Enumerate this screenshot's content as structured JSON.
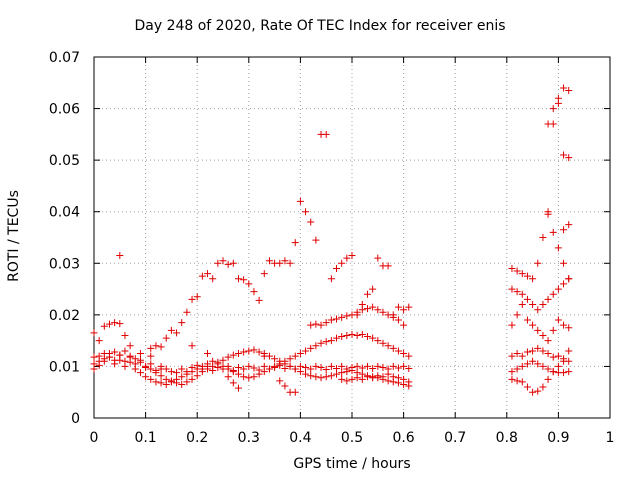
{
  "chart_data": {
    "type": "scatter",
    "title": "Day 248 of 2020, Rate Of TEC Index for receiver enis",
    "xlabel": "GPS time / hours",
    "ylabel": "ROTI / TECUs",
    "xlim": [
      0,
      1
    ],
    "ylim": [
      0,
      0.07
    ],
    "xticks": [
      "0",
      "0.1",
      "0.2",
      "0.3",
      "0.4",
      "0.5",
      "0.6",
      "0.7",
      "0.8",
      "0.9",
      "1"
    ],
    "yticks": [
      "0",
      "0.01",
      "0.02",
      "0.03",
      "0.04",
      "0.05",
      "0.06",
      "0.07"
    ],
    "grid": true,
    "marker": "+",
    "color": "#e00000",
    "points": [
      [
        0.0,
        0.0118
      ],
      [
        0.01,
        0.012
      ],
      [
        0.02,
        0.0115
      ],
      [
        0.03,
        0.0125
      ],
      [
        0.04,
        0.0112
      ],
      [
        0.05,
        0.0122
      ],
      [
        0.06,
        0.011
      ],
      [
        0.07,
        0.0118
      ],
      [
        0.08,
        0.0105
      ],
      [
        0.09,
        0.0112
      ],
      [
        0.1,
        0.0098
      ],
      [
        0.11,
        0.0105
      ],
      [
        0.12,
        0.0092
      ],
      [
        0.13,
        0.01
      ],
      [
        0.14,
        0.0095
      ],
      [
        0.15,
        0.009
      ],
      [
        0.16,
        0.0088
      ],
      [
        0.17,
        0.0095
      ],
      [
        0.18,
        0.009
      ],
      [
        0.19,
        0.0098
      ],
      [
        0.2,
        0.0102
      ],
      [
        0.21,
        0.0095
      ],
      [
        0.22,
        0.01
      ],
      [
        0.23,
        0.0092
      ],
      [
        0.24,
        0.0098
      ],
      [
        0.25,
        0.0095
      ],
      [
        0.26,
        0.01
      ],
      [
        0.27,
        0.0092
      ],
      [
        0.28,
        0.0098
      ],
      [
        0.29,
        0.0095
      ],
      [
        0.3,
        0.01
      ],
      [
        0.31,
        0.0097
      ],
      [
        0.32,
        0.0093
      ],
      [
        0.33,
        0.01
      ],
      [
        0.34,
        0.0095
      ],
      [
        0.35,
        0.0098
      ],
      [
        0.36,
        0.0102
      ],
      [
        0.37,
        0.0096
      ],
      [
        0.38,
        0.01
      ],
      [
        0.39,
        0.0095
      ],
      [
        0.4,
        0.01
      ],
      [
        0.41,
        0.0098
      ],
      [
        0.42,
        0.0095
      ],
      [
        0.43,
        0.01
      ],
      [
        0.44,
        0.0098
      ],
      [
        0.45,
        0.0094
      ],
      [
        0.46,
        0.01
      ],
      [
        0.47,
        0.0096
      ],
      [
        0.48,
        0.01
      ],
      [
        0.49,
        0.0095
      ],
      [
        0.5,
        0.0098
      ],
      [
        0.51,
        0.01
      ],
      [
        0.52,
        0.0097
      ],
      [
        0.53,
        0.01
      ],
      [
        0.54,
        0.0096
      ],
      [
        0.55,
        0.01
      ],
      [
        0.56,
        0.0098
      ],
      [
        0.57,
        0.0095
      ],
      [
        0.58,
        0.01
      ],
      [
        0.59,
        0.0097
      ],
      [
        0.6,
        0.01
      ],
      [
        0.61,
        0.0096
      ],
      [
        0.0,
        0.0105
      ],
      [
        0.01,
        0.011
      ],
      [
        0.02,
        0.0125
      ],
      [
        0.03,
        0.0118
      ],
      [
        0.04,
        0.0128
      ],
      [
        0.05,
        0.0122
      ],
      [
        0.06,
        0.013
      ],
      [
        0.07,
        0.012
      ],
      [
        0.08,
        0.0115
      ],
      [
        0.09,
        0.0108
      ],
      [
        0.1,
        0.01
      ],
      [
        0.11,
        0.0095
      ],
      [
        0.12,
        0.0088
      ],
      [
        0.13,
        0.0082
      ],
      [
        0.14,
        0.0075
      ],
      [
        0.15,
        0.0072
      ],
      [
        0.16,
        0.0068
      ],
      [
        0.17,
        0.0065
      ],
      [
        0.18,
        0.007
      ],
      [
        0.19,
        0.0075
      ],
      [
        0.2,
        0.0082
      ],
      [
        0.21,
        0.009
      ],
      [
        0.22,
        0.0095
      ],
      [
        0.23,
        0.01
      ],
      [
        0.24,
        0.0108
      ],
      [
        0.25,
        0.0112
      ],
      [
        0.26,
        0.0118
      ],
      [
        0.27,
        0.0122
      ],
      [
        0.28,
        0.0125
      ],
      [
        0.29,
        0.0128
      ],
      [
        0.3,
        0.013
      ],
      [
        0.31,
        0.0132
      ],
      [
        0.32,
        0.0128
      ],
      [
        0.33,
        0.0125
      ],
      [
        0.34,
        0.012
      ],
      [
        0.35,
        0.0115
      ],
      [
        0.36,
        0.011
      ],
      [
        0.37,
        0.0105
      ],
      [
        0.38,
        0.01
      ],
      [
        0.39,
        0.0095
      ],
      [
        0.4,
        0.009
      ],
      [
        0.41,
        0.0085
      ],
      [
        0.42,
        0.0082
      ],
      [
        0.43,
        0.008
      ],
      [
        0.44,
        0.0078
      ],
      [
        0.45,
        0.008
      ],
      [
        0.46,
        0.0082
      ],
      [
        0.47,
        0.0085
      ],
      [
        0.48,
        0.0088
      ],
      [
        0.49,
        0.009
      ],
      [
        0.5,
        0.0092
      ],
      [
        0.51,
        0.0088
      ],
      [
        0.52,
        0.0085
      ],
      [
        0.53,
        0.0082
      ],
      [
        0.54,
        0.008
      ],
      [
        0.55,
        0.0078
      ],
      [
        0.56,
        0.0075
      ],
      [
        0.57,
        0.0072
      ],
      [
        0.58,
        0.007
      ],
      [
        0.59,
        0.0068
      ],
      [
        0.6,
        0.0065
      ],
      [
        0.61,
        0.0062
      ],
      [
        0.0,
        0.0095
      ],
      [
        0.01,
        0.0102
      ],
      [
        0.02,
        0.011
      ],
      [
        0.03,
        0.0118
      ],
      [
        0.04,
        0.0105
      ],
      [
        0.05,
        0.0112
      ],
      [
        0.06,
        0.01
      ],
      [
        0.07,
        0.0108
      ],
      [
        0.08,
        0.0095
      ],
      [
        0.09,
        0.0088
      ],
      [
        0.1,
        0.008
      ],
      [
        0.11,
        0.0075
      ],
      [
        0.12,
        0.007
      ],
      [
        0.13,
        0.0068
      ],
      [
        0.14,
        0.0065
      ],
      [
        0.15,
        0.007
      ],
      [
        0.16,
        0.0075
      ],
      [
        0.17,
        0.008
      ],
      [
        0.18,
        0.0085
      ],
      [
        0.19,
        0.009
      ],
      [
        0.2,
        0.0095
      ],
      [
        0.21,
        0.01
      ],
      [
        0.22,
        0.0105
      ],
      [
        0.23,
        0.011
      ],
      [
        0.24,
        0.0105
      ],
      [
        0.25,
        0.01
      ],
      [
        0.26,
        0.0095
      ],
      [
        0.27,
        0.009
      ],
      [
        0.28,
        0.0085
      ],
      [
        0.29,
        0.008
      ],
      [
        0.3,
        0.0078
      ],
      [
        0.31,
        0.008
      ],
      [
        0.32,
        0.0085
      ],
      [
        0.33,
        0.009
      ],
      [
        0.34,
        0.0095
      ],
      [
        0.35,
        0.01
      ],
      [
        0.36,
        0.0105
      ],
      [
        0.37,
        0.011
      ],
      [
        0.38,
        0.0115
      ],
      [
        0.39,
        0.012
      ],
      [
        0.4,
        0.0125
      ],
      [
        0.41,
        0.013
      ],
      [
        0.42,
        0.0135
      ],
      [
        0.43,
        0.014
      ],
      [
        0.44,
        0.0145
      ],
      [
        0.45,
        0.0148
      ],
      [
        0.46,
        0.015
      ],
      [
        0.47,
        0.0155
      ],
      [
        0.48,
        0.0158
      ],
      [
        0.49,
        0.016
      ],
      [
        0.5,
        0.0162
      ],
      [
        0.51,
        0.016
      ],
      [
        0.52,
        0.0162
      ],
      [
        0.53,
        0.0158
      ],
      [
        0.54,
        0.0155
      ],
      [
        0.55,
        0.015
      ],
      [
        0.56,
        0.0145
      ],
      [
        0.57,
        0.014
      ],
      [
        0.58,
        0.0135
      ],
      [
        0.59,
        0.013
      ],
      [
        0.6,
        0.0125
      ],
      [
        0.61,
        0.012
      ],
      [
        0.0,
        0.0165
      ],
      [
        0.01,
        0.015
      ],
      [
        0.02,
        0.0178
      ],
      [
        0.03,
        0.0182
      ],
      [
        0.04,
        0.0185
      ],
      [
        0.05,
        0.0183
      ],
      [
        0.06,
        0.016
      ],
      [
        0.07,
        0.014
      ],
      [
        0.09,
        0.0125
      ],
      [
        0.11,
        0.0135
      ],
      [
        0.12,
        0.014
      ],
      [
        0.13,
        0.0138
      ],
      [
        0.14,
        0.0155
      ],
      [
        0.15,
        0.017
      ],
      [
        0.16,
        0.0165
      ],
      [
        0.17,
        0.0185
      ],
      [
        0.18,
        0.0205
      ],
      [
        0.19,
        0.023
      ],
      [
        0.2,
        0.0235
      ],
      [
        0.21,
        0.0275
      ],
      [
        0.22,
        0.028
      ],
      [
        0.23,
        0.027
      ],
      [
        0.24,
        0.03
      ],
      [
        0.25,
        0.0305
      ],
      [
        0.26,
        0.0298
      ],
      [
        0.27,
        0.03
      ],
      [
        0.28,
        0.027
      ],
      [
        0.29,
        0.0268
      ],
      [
        0.3,
        0.026
      ],
      [
        0.31,
        0.0245
      ],
      [
        0.32,
        0.0228
      ],
      [
        0.33,
        0.028
      ],
      [
        0.34,
        0.0305
      ],
      [
        0.35,
        0.03
      ],
      [
        0.36,
        0.03
      ],
      [
        0.37,
        0.0305
      ],
      [
        0.38,
        0.03
      ],
      [
        0.39,
        0.034
      ],
      [
        0.4,
        0.042
      ],
      [
        0.41,
        0.04
      ],
      [
        0.42,
        0.038
      ],
      [
        0.43,
        0.0345
      ],
      [
        0.44,
        0.055
      ],
      [
        0.45,
        0.055
      ],
      [
        0.46,
        0.027
      ],
      [
        0.47,
        0.029
      ],
      [
        0.48,
        0.03
      ],
      [
        0.49,
        0.031
      ],
      [
        0.5,
        0.0315
      ],
      [
        0.51,
        0.02
      ],
      [
        0.52,
        0.022
      ],
      [
        0.53,
        0.024
      ],
      [
        0.54,
        0.025
      ],
      [
        0.55,
        0.031
      ],
      [
        0.56,
        0.0295
      ],
      [
        0.57,
        0.0295
      ],
      [
        0.58,
        0.02
      ],
      [
        0.59,
        0.0215
      ],
      [
        0.6,
        0.021
      ],
      [
        0.61,
        0.0215
      ],
      [
        0.05,
        0.0315
      ],
      [
        0.11,
        0.012
      ],
      [
        0.13,
        0.0095
      ],
      [
        0.19,
        0.014
      ],
      [
        0.22,
        0.0125
      ],
      [
        0.26,
        0.008
      ],
      [
        0.27,
        0.0068
      ],
      [
        0.28,
        0.0058
      ],
      [
        0.33,
        0.012
      ],
      [
        0.36,
        0.0072
      ],
      [
        0.37,
        0.0062
      ],
      [
        0.38,
        0.005
      ],
      [
        0.39,
        0.005
      ],
      [
        0.42,
        0.018
      ],
      [
        0.43,
        0.0182
      ],
      [
        0.44,
        0.018
      ],
      [
        0.45,
        0.0185
      ],
      [
        0.46,
        0.019
      ],
      [
        0.47,
        0.0192
      ],
      [
        0.48,
        0.0195
      ],
      [
        0.49,
        0.0198
      ],
      [
        0.5,
        0.02
      ],
      [
        0.51,
        0.0205
      ],
      [
        0.52,
        0.021
      ],
      [
        0.53,
        0.0212
      ],
      [
        0.54,
        0.0215
      ],
      [
        0.55,
        0.021
      ],
      [
        0.56,
        0.0205
      ],
      [
        0.57,
        0.02
      ],
      [
        0.58,
        0.0195
      ],
      [
        0.59,
        0.019
      ],
      [
        0.6,
        0.018
      ],
      [
        0.48,
        0.0075
      ],
      [
        0.49,
        0.0072
      ],
      [
        0.5,
        0.0075
      ],
      [
        0.51,
        0.0078
      ],
      [
        0.52,
        0.0075
      ],
      [
        0.53,
        0.008
      ],
      [
        0.54,
        0.0078
      ],
      [
        0.55,
        0.0082
      ],
      [
        0.56,
        0.008
      ],
      [
        0.57,
        0.0085
      ],
      [
        0.58,
        0.008
      ],
      [
        0.59,
        0.0078
      ],
      [
        0.6,
        0.0075
      ],
      [
        0.61,
        0.007
      ],
      [
        0.81,
        0.029
      ],
      [
        0.82,
        0.0285
      ],
      [
        0.83,
        0.028
      ],
      [
        0.84,
        0.0275
      ],
      [
        0.85,
        0.027
      ],
      [
        0.86,
        0.03
      ],
      [
        0.87,
        0.035
      ],
      [
        0.88,
        0.04
      ],
      [
        0.89,
        0.036
      ],
      [
        0.9,
        0.033
      ],
      [
        0.91,
        0.03
      ],
      [
        0.92,
        0.027
      ],
      [
        0.81,
        0.025
      ],
      [
        0.82,
        0.0245
      ],
      [
        0.83,
        0.024
      ],
      [
        0.84,
        0.023
      ],
      [
        0.85,
        0.022
      ],
      [
        0.86,
        0.021
      ],
      [
        0.87,
        0.022
      ],
      [
        0.88,
        0.023
      ],
      [
        0.89,
        0.024
      ],
      [
        0.9,
        0.025
      ],
      [
        0.91,
        0.026
      ],
      [
        0.92,
        0.027
      ],
      [
        0.81,
        0.018
      ],
      [
        0.82,
        0.02
      ],
      [
        0.83,
        0.022
      ],
      [
        0.84,
        0.019
      ],
      [
        0.85,
        0.018
      ],
      [
        0.86,
        0.017
      ],
      [
        0.87,
        0.016
      ],
      [
        0.88,
        0.015
      ],
      [
        0.89,
        0.017
      ],
      [
        0.9,
        0.019
      ],
      [
        0.91,
        0.018
      ],
      [
        0.92,
        0.0175
      ],
      [
        0.81,
        0.012
      ],
      [
        0.82,
        0.0125
      ],
      [
        0.83,
        0.012
      ],
      [
        0.84,
        0.0128
      ],
      [
        0.85,
        0.013
      ],
      [
        0.86,
        0.0135
      ],
      [
        0.87,
        0.013
      ],
      [
        0.88,
        0.0125
      ],
      [
        0.89,
        0.0118
      ],
      [
        0.9,
        0.012
      ],
      [
        0.91,
        0.0115
      ],
      [
        0.92,
        0.011
      ],
      [
        0.81,
        0.009
      ],
      [
        0.82,
        0.0095
      ],
      [
        0.83,
        0.01
      ],
      [
        0.84,
        0.0105
      ],
      [
        0.85,
        0.011
      ],
      [
        0.86,
        0.0105
      ],
      [
        0.87,
        0.01
      ],
      [
        0.88,
        0.0095
      ],
      [
        0.89,
        0.009
      ],
      [
        0.9,
        0.0088
      ],
      [
        0.91,
        0.0088
      ],
      [
        0.92,
        0.009
      ],
      [
        0.81,
        0.0075
      ],
      [
        0.82,
        0.0072
      ],
      [
        0.83,
        0.007
      ],
      [
        0.84,
        0.006
      ],
      [
        0.85,
        0.005
      ],
      [
        0.86,
        0.0052
      ],
      [
        0.87,
        0.006
      ],
      [
        0.88,
        0.0075
      ],
      [
        0.89,
        0.009
      ],
      [
        0.9,
        0.01
      ],
      [
        0.91,
        0.011
      ],
      [
        0.92,
        0.013
      ],
      [
        0.88,
        0.057
      ],
      [
        0.89,
        0.057
      ],
      [
        0.9,
        0.062
      ],
      [
        0.91,
        0.064
      ],
      [
        0.92,
        0.0635
      ],
      [
        0.89,
        0.06
      ],
      [
        0.91,
        0.051
      ],
      [
        0.92,
        0.0505
      ],
      [
        0.9,
        0.061
      ],
      [
        0.88,
        0.0395
      ],
      [
        0.91,
        0.0365
      ],
      [
        0.92,
        0.0375
      ]
    ]
  }
}
